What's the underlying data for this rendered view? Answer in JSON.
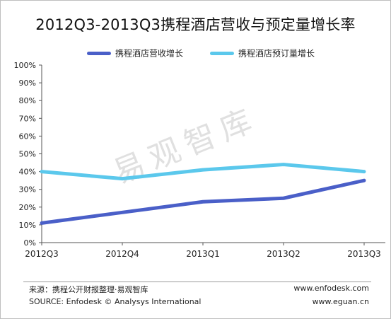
{
  "chart_data": {
    "type": "line",
    "title": "2012Q3-2013Q3携程酒店营收与预定量增长率",
    "categories": [
      "2012Q3",
      "2012Q4",
      "2013Q1",
      "2013Q2",
      "2013Q3"
    ],
    "yticks": [
      "0%",
      "10%",
      "20%",
      "30%",
      "40%",
      "50%",
      "60%",
      "70%",
      "80%",
      "90%",
      "100%"
    ],
    "ylim": [
      0,
      100
    ],
    "grid": false,
    "legend_position": "top",
    "series": [
      {
        "name": "携程酒店营收增长",
        "color": "#4a5fc8",
        "values": [
          11,
          17,
          23,
          25,
          35
        ]
      },
      {
        "name": "携程酒店预订量增长",
        "color": "#5bc8ec",
        "values": [
          40,
          36,
          41,
          44,
          40
        ]
      }
    ]
  },
  "watermark": "易观智库",
  "footer": {
    "source_cn": "来源：携程公开财报整理·易观智库",
    "source_en": "SOURCE: Enfodesk © Analysys International",
    "url1": "www.enfodesk.com",
    "url2": "www.eguan.cn"
  }
}
